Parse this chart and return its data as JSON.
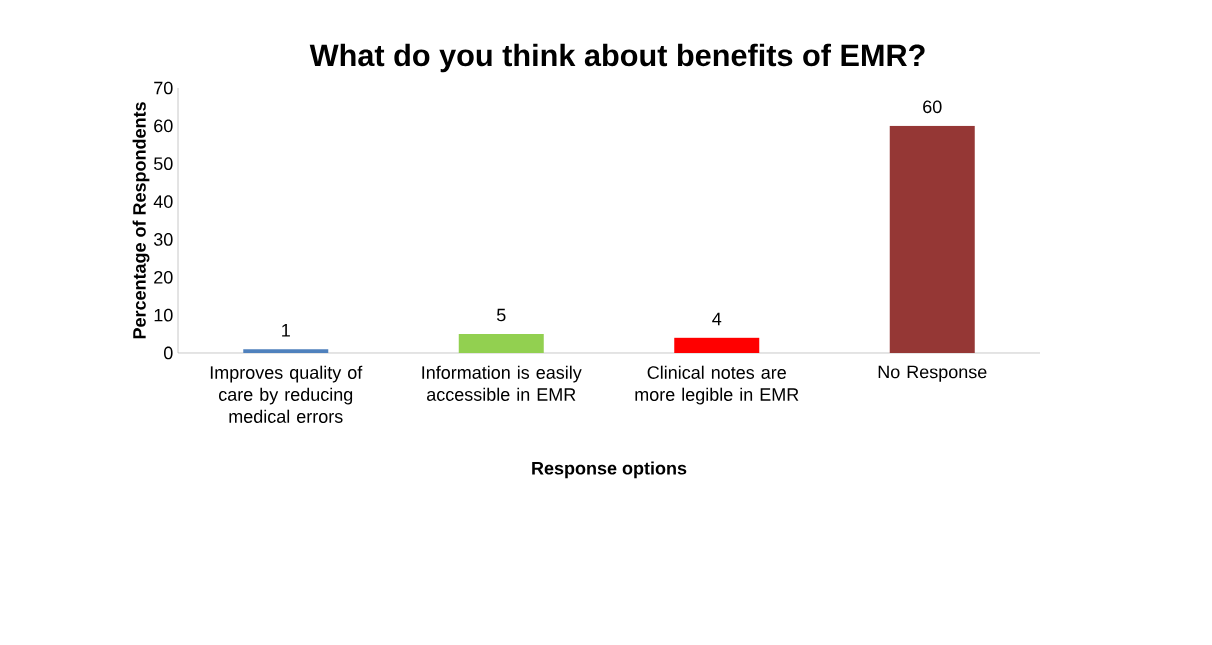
{
  "chart_data": {
    "type": "bar",
    "title": "What do you think about benefits of EMR?",
    "xlabel": "Response options",
    "ylabel": "Percentage of Respondents",
    "categories": [
      "Improves quality of care by reducing medical errors",
      "Information is easily accessible in EMR",
      "Clinical notes are more legible in EMR",
      "No Response"
    ],
    "values": [
      1,
      5,
      4,
      60
    ],
    "colors": [
      "#4f81bd",
      "#92d050",
      "#ff0000",
      "#953735"
    ],
    "ylim": [
      0,
      70
    ],
    "yticks": [
      0,
      10,
      20,
      30,
      40,
      50,
      60,
      70
    ],
    "grid": false,
    "data_labels": true
  }
}
